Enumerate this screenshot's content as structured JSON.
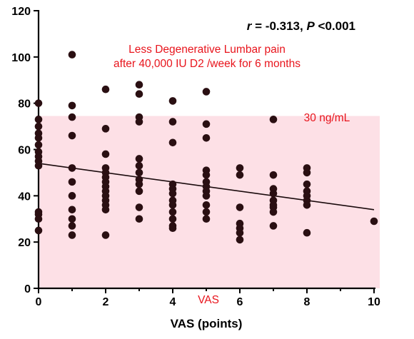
{
  "chart_data": {
    "type": "scatter",
    "xlabel": "VAS (points)",
    "ylabel": "",
    "xlim": [
      0,
      10
    ],
    "ylim": [
      0,
      120
    ],
    "x_ticks": [
      0,
      2,
      4,
      6,
      8,
      10
    ],
    "y_ticks": [
      0,
      20,
      40,
      60,
      80,
      100,
      120
    ],
    "grid": false,
    "stat_text": {
      "r_label": "r",
      "r_rest": " = -0.313, ",
      "p_label": "P",
      "p_rest": " <0.001"
    },
    "annotation_lines": [
      "Less Degenerative Lumbar pain",
      "after 40,000 IU D2 /week for 6 months"
    ],
    "band": {
      "label": "30 ng/mL",
      "y_range": [
        0,
        74.5
      ],
      "color": "#fde0e6"
    },
    "inner_label": "VAS",
    "annotation_color": "#e8141c",
    "point_color": "#2a0f12",
    "regression": {
      "x": [
        0,
        10
      ],
      "y": [
        54,
        34
      ]
    },
    "points": [
      [
        0,
        80
      ],
      [
        0,
        73
      ],
      [
        0,
        70
      ],
      [
        0,
        67
      ],
      [
        0,
        65
      ],
      [
        0,
        62
      ],
      [
        0,
        59
      ],
      [
        0,
        57
      ],
      [
        0,
        55
      ],
      [
        0,
        53
      ],
      [
        0,
        33
      ],
      [
        0,
        32
      ],
      [
        0,
        30
      ],
      [
        0,
        25
      ],
      [
        1,
        101
      ],
      [
        1,
        79
      ],
      [
        1,
        74
      ],
      [
        1,
        66
      ],
      [
        1,
        52
      ],
      [
        1,
        46
      ],
      [
        1,
        40
      ],
      [
        1,
        34
      ],
      [
        1,
        30
      ],
      [
        1,
        27
      ],
      [
        1,
        23
      ],
      [
        2,
        86
      ],
      [
        2,
        69
      ],
      [
        2,
        58
      ],
      [
        2,
        52
      ],
      [
        2,
        50
      ],
      [
        2,
        48
      ],
      [
        2,
        46
      ],
      [
        2,
        44
      ],
      [
        2,
        42
      ],
      [
        2,
        40
      ],
      [
        2,
        38
      ],
      [
        2,
        36
      ],
      [
        2,
        34
      ],
      [
        2,
        23
      ],
      [
        3,
        88
      ],
      [
        3,
        84
      ],
      [
        3,
        74
      ],
      [
        3,
        72
      ],
      [
        3,
        56
      ],
      [
        3,
        53
      ],
      [
        3,
        50
      ],
      [
        3,
        47
      ],
      [
        3,
        45
      ],
      [
        3,
        42
      ],
      [
        3,
        35
      ],
      [
        3,
        30
      ],
      [
        4,
        81
      ],
      [
        4,
        72
      ],
      [
        4,
        63
      ],
      [
        4,
        45
      ],
      [
        4,
        43
      ],
      [
        4,
        41
      ],
      [
        4,
        38
      ],
      [
        4,
        36
      ],
      [
        4,
        33
      ],
      [
        4,
        30
      ],
      [
        4,
        27
      ],
      [
        4,
        26
      ],
      [
        5,
        85
      ],
      [
        5,
        71
      ],
      [
        5,
        65
      ],
      [
        5,
        51
      ],
      [
        5,
        49
      ],
      [
        5,
        46
      ],
      [
        5,
        44
      ],
      [
        5,
        42
      ],
      [
        5,
        40
      ],
      [
        5,
        36
      ],
      [
        5,
        33
      ],
      [
        5,
        30
      ],
      [
        6,
        52
      ],
      [
        6,
        49
      ],
      [
        6,
        35
      ],
      [
        6,
        28
      ],
      [
        6,
        26
      ],
      [
        6,
        24
      ],
      [
        6,
        21
      ],
      [
        7,
        73
      ],
      [
        7,
        49
      ],
      [
        7,
        43
      ],
      [
        7,
        41
      ],
      [
        7,
        38
      ],
      [
        7,
        36
      ],
      [
        7,
        35
      ],
      [
        7,
        33
      ],
      [
        7,
        27
      ],
      [
        8,
        52
      ],
      [
        8,
        50
      ],
      [
        8,
        45
      ],
      [
        8,
        42
      ],
      [
        8,
        40
      ],
      [
        8,
        38
      ],
      [
        8,
        36
      ],
      [
        8,
        24
      ],
      [
        10,
        29
      ]
    ]
  }
}
